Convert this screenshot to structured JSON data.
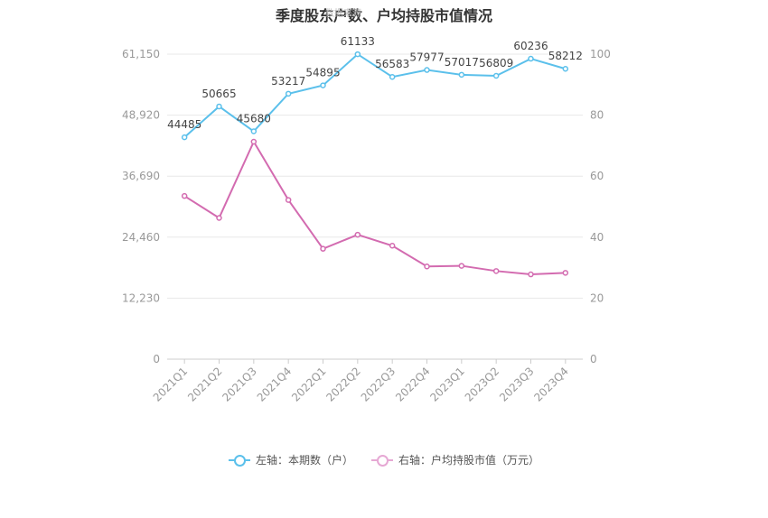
{
  "watermark": "数据来源",
  "chart_data": {
    "type": "line",
    "title": "季度股东户数、户均持股市值情况",
    "categories": [
      "2021Q1",
      "2021Q2",
      "2021Q3",
      "2021Q4",
      "2022Q1",
      "2022Q2",
      "2022Q3",
      "2022Q4",
      "2023Q1",
      "2023Q2",
      "2023Q3",
      "2023Q4"
    ],
    "left_axis": {
      "min": 0,
      "max": 61150,
      "ticks": [
        "0",
        "12,230",
        "24,460",
        "36,690",
        "48,920",
        "61,150"
      ]
    },
    "right_axis": {
      "min": 0,
      "max": 100,
      "ticks": [
        "0",
        "20",
        "40",
        "60",
        "80",
        "100"
      ]
    },
    "series": [
      {
        "name": "左轴：本期数（户）",
        "axis": "left",
        "color": "#5bc0eb",
        "values": [
          44485,
          50665,
          45680,
          53217,
          54895,
          61133,
          56583,
          57977,
          57017,
          56809,
          60236,
          58212
        ],
        "labels": [
          "44485",
          "50665",
          "45680",
          "53217",
          "54895",
          "61133",
          "56583",
          "57977",
          "57017",
          "56809",
          "60236",
          "58212"
        ]
      },
      {
        "name": "右轴：户均持股市值（万元）",
        "axis": "right",
        "color": "#d36bb0",
        "values": [
          53.5,
          46.3,
          71.3,
          52.2,
          36.2,
          40.8,
          37.2,
          30.4,
          30.6,
          28.9,
          27.8,
          28.3
        ]
      }
    ],
    "grid": true,
    "legend_position": "bottom"
  }
}
